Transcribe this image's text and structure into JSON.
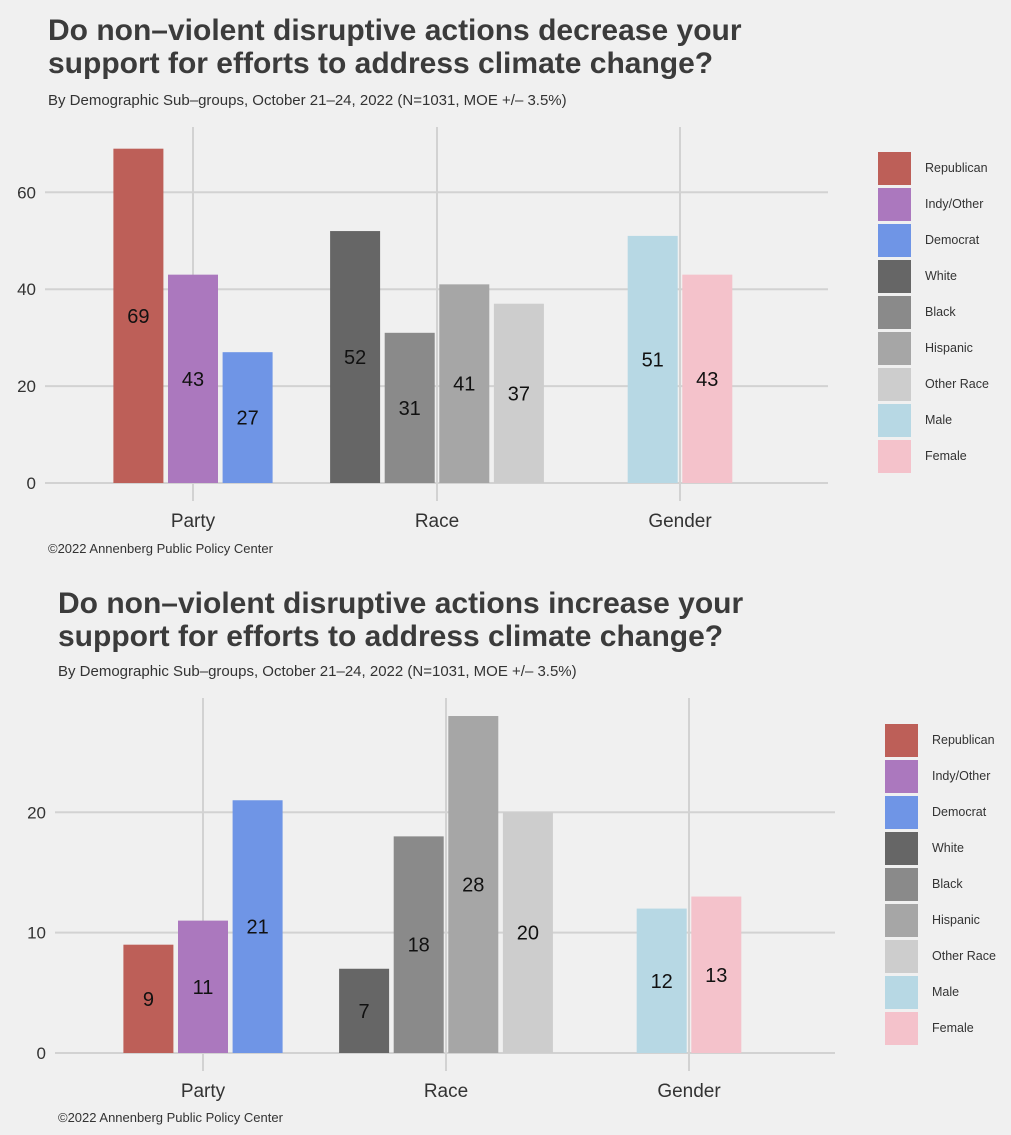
{
  "chart_data": [
    {
      "type": "bar",
      "title_line1": "Do non–violent disruptive actions decrease your",
      "title_line2": "support for efforts to address climate change?",
      "subtitle": "By Demographic Sub–groups, October 21–24, 2022 (N=1031, MOE +/– 3.5%)",
      "caption": "©2022 Annenberg Public Policy Center",
      "xlabel": "",
      "ylabel": "",
      "ylim": [
        0,
        71
      ],
      "yticks": [
        0,
        20,
        40,
        60
      ],
      "groups": [
        {
          "label": "Party",
          "bars": [
            {
              "series": "Republican",
              "value": 69
            },
            {
              "series": "Indy/Other",
              "value": 43
            },
            {
              "series": "Democrat",
              "value": 27
            }
          ]
        },
        {
          "label": "Race",
          "bars": [
            {
              "series": "White",
              "value": 52
            },
            {
              "series": "Black",
              "value": 31
            },
            {
              "series": "Hispanic",
              "value": 41
            },
            {
              "series": "Other Race",
              "value": 37
            }
          ]
        },
        {
          "label": "Gender",
          "bars": [
            {
              "series": "Male",
              "value": 51
            },
            {
              "series": "Female",
              "value": 43
            }
          ]
        }
      ]
    },
    {
      "type": "bar",
      "title_line1": "Do non–violent disruptive actions increase your",
      "title_line2": "support for efforts to address climate change?",
      "subtitle": "By Demographic Sub–groups, October 21–24, 2022 (N=1031, MOE +/– 3.5%)",
      "caption": "©2022 Annenberg Public Policy Center",
      "xlabel": "",
      "ylabel": "",
      "ylim": [
        0,
        28.5
      ],
      "yticks": [
        0,
        10,
        20
      ],
      "groups": [
        {
          "label": "Party",
          "bars": [
            {
              "series": "Republican",
              "value": 9
            },
            {
              "series": "Indy/Other",
              "value": 11
            },
            {
              "series": "Democrat",
              "value": 21
            }
          ]
        },
        {
          "label": "Race",
          "bars": [
            {
              "series": "White",
              "value": 7
            },
            {
              "series": "Black",
              "value": 18
            },
            {
              "series": "Hispanic",
              "value": 28
            },
            {
              "series": "Other Race",
              "value": 20
            }
          ]
        },
        {
          "label": "Gender",
          "bars": [
            {
              "series": "Male",
              "value": 12
            },
            {
              "series": "Female",
              "value": 13
            }
          ]
        }
      ]
    }
  ],
  "legend": [
    {
      "label": "Republican",
      "color": "#bd5f58"
    },
    {
      "label": "Indy/Other",
      "color": "#ab78be"
    },
    {
      "label": "Democrat",
      "color": "#6f95e6"
    },
    {
      "label": "White",
      "color": "#666666"
    },
    {
      "label": "Black",
      "color": "#8a8a8a"
    },
    {
      "label": "Hispanic",
      "color": "#a6a6a6"
    },
    {
      "label": "Other Race",
      "color": "#cdcdcd"
    },
    {
      "label": "Male",
      "color": "#b7d8e4"
    },
    {
      "label": "Female",
      "color": "#f4c2cb"
    }
  ]
}
